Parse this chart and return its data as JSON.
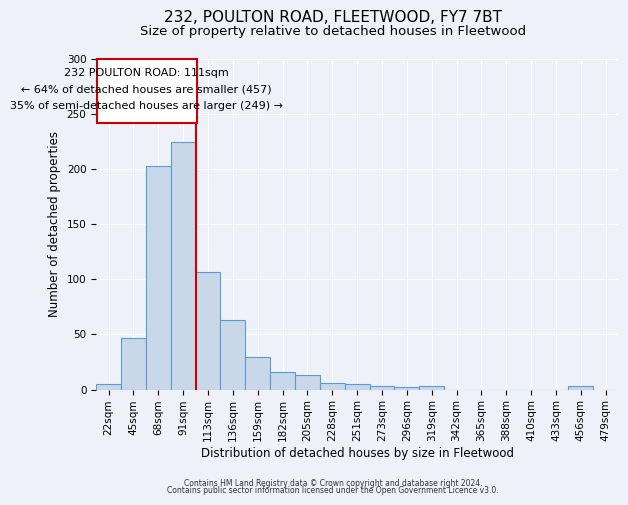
{
  "title1": "232, POULTON ROAD, FLEETWOOD, FY7 7BT",
  "title2": "Size of property relative to detached houses in Fleetwood",
  "xlabel": "Distribution of detached houses by size in Fleetwood",
  "ylabel": "Number of detached properties",
  "categories": [
    "22sqm",
    "45sqm",
    "68sqm",
    "91sqm",
    "113sqm",
    "136sqm",
    "159sqm",
    "182sqm",
    "205sqm",
    "228sqm",
    "251sqm",
    "273sqm",
    "296sqm",
    "319sqm",
    "342sqm",
    "365sqm",
    "388sqm",
    "410sqm",
    "433sqm",
    "456sqm",
    "479sqm"
  ],
  "values": [
    5,
    47,
    203,
    225,
    107,
    63,
    30,
    16,
    13,
    6,
    5,
    3,
    2,
    3,
    0,
    0,
    0,
    0,
    0,
    3,
    0
  ],
  "bar_color": "#c8d8e8",
  "bar_edge_color": "#5b9bd5",
  "marker_bar_index": 4,
  "marker_label": "232 POULTON ROAD: 111sqm",
  "annotation_line1": "← 64% of detached houses are smaller (457)",
  "annotation_line2": "35% of semi-detached houses are larger (249) →",
  "marker_color": "#cc0000",
  "background_color": "#eef2f8",
  "grid_color": "#ffffff",
  "footnote1": "Contains HM Land Registry data © Crown copyright and database right 2024.",
  "footnote2": "Contains public sector information licensed under the Open Government Licence v3.0.",
  "ylim": [
    0,
    300
  ],
  "title1_fontsize": 11,
  "title2_fontsize": 9.5,
  "xlabel_fontsize": 8.5,
  "ylabel_fontsize": 8.5,
  "tick_fontsize": 7.5
}
